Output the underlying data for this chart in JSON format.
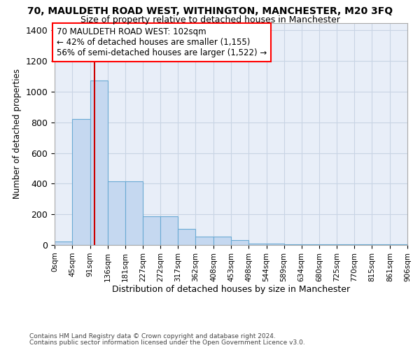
{
  "title": "70, MAULDETH ROAD WEST, WITHINGTON, MANCHESTER, M20 3FQ",
  "subtitle": "Size of property relative to detached houses in Manchester",
  "xlabel": "Distribution of detached houses by size in Manchester",
  "ylabel": "Number of detached properties",
  "footnote1": "Contains HM Land Registry data © Crown copyright and database right 2024.",
  "footnote2": "Contains public sector information licensed under the Open Government Licence v3.0.",
  "annotation_line1": "70 MAULDETH ROAD WEST: 102sqm",
  "annotation_line2": "← 42% of detached houses are smaller (1,155)",
  "annotation_line3": "56% of semi-detached houses are larger (1,522) →",
  "bar_lefts": [
    0,
    45,
    91,
    136,
    181,
    227,
    272,
    317,
    362,
    408,
    453,
    498,
    544,
    589,
    634,
    680,
    725,
    770,
    815,
    861
  ],
  "bar_widths": [
    45,
    46,
    45,
    45,
    46,
    45,
    45,
    45,
    46,
    45,
    45,
    46,
    45,
    45,
    46,
    45,
    45,
    45,
    46,
    45
  ],
  "bar_heights": [
    25,
    820,
    1075,
    415,
    415,
    185,
    185,
    105,
    55,
    55,
    30,
    10,
    10,
    5,
    5,
    5,
    5,
    5,
    5,
    5
  ],
  "bar_color": "#c5d8f0",
  "bar_edge_color": "#6aaad4",
  "property_size": 102,
  "vline_color": "#cc0000",
  "background_color": "#ffffff",
  "axes_bg_color": "#e8eef8",
  "grid_color": "#c8d4e4",
  "ylim": [
    0,
    1450
  ],
  "yticks": [
    0,
    200,
    400,
    600,
    800,
    1000,
    1200,
    1400
  ],
  "xtick_labels": [
    "0sqm",
    "45sqm",
    "91sqm",
    "136sqm",
    "181sqm",
    "227sqm",
    "272sqm",
    "317sqm",
    "362sqm",
    "408sqm",
    "453sqm",
    "498sqm",
    "544sqm",
    "589sqm",
    "634sqm",
    "680sqm",
    "725sqm",
    "770sqm",
    "815sqm",
    "861sqm",
    "906sqm"
  ],
  "xtick_positions": [
    0,
    45,
    91,
    136,
    181,
    227,
    272,
    317,
    362,
    408,
    453,
    498,
    544,
    589,
    634,
    680,
    725,
    770,
    815,
    861,
    906
  ],
  "xlim": [
    0,
    906
  ]
}
